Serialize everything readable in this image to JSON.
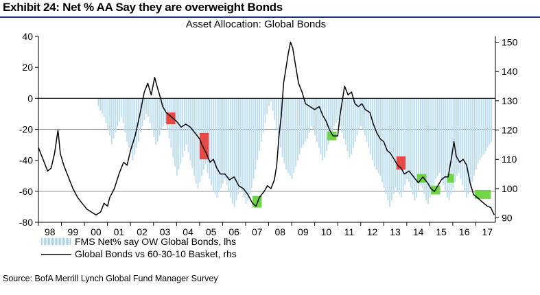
{
  "header": {
    "title": "Exhibit 24: Net % AA Say they are overweight Bonds"
  },
  "source": "Source: BofA Merrill Lynch Global Fund Manager Survey",
  "colors": {
    "bars": "#b9dcf2",
    "line": "#000000",
    "red_highlight": "#e8413c",
    "green_highlight": "#66d43a",
    "title_rule": "#1f2d8a"
  },
  "chart_data": {
    "type": "bar+line",
    "title": "Asset Allocation: Global Bonds",
    "x_tick_labels": [
      "98",
      "99",
      "00",
      "01",
      "02",
      "03",
      "04",
      "05",
      "06",
      "07",
      "08",
      "09",
      "10",
      "11",
      "12",
      "13",
      "14",
      "15",
      "16",
      "17"
    ],
    "x_range": [
      1998.0,
      2017.85
    ],
    "left_axis": {
      "min": -80,
      "max": 40,
      "ticks": [
        40,
        20,
        0,
        -20,
        -40,
        -60,
        -80
      ]
    },
    "right_axis": {
      "min": 88.5,
      "max": 152,
      "ticks": [
        150,
        140,
        130,
        120,
        110,
        100,
        90
      ]
    },
    "reference_lines_lhs": [
      -20,
      -60
    ],
    "series": [
      {
        "name": "FMS Net% say OW Global Bonds, lhs",
        "type": "bar",
        "axis": "left",
        "start": 2000.6,
        "step": 0.0833,
        "values": [
          -5,
          -8,
          -10,
          -12,
          -16,
          -20,
          -24,
          -30,
          -26,
          -22,
          -18,
          -15,
          -12,
          -16,
          -22,
          -28,
          -32,
          -35,
          -40,
          -36,
          -32,
          -28,
          -22,
          -18,
          -14,
          -10,
          -12,
          -16,
          -20,
          -25,
          -30,
          -28,
          -24,
          -20,
          -18,
          -16,
          -20,
          -26,
          -32,
          -38,
          -44,
          -50,
          -46,
          -42,
          -38,
          -34,
          -30,
          -35,
          -40,
          -45,
          -50,
          -55,
          -58,
          -54,
          -50,
          -46,
          -42,
          -48,
          -52,
          -56,
          -60,
          -62,
          -64,
          -60,
          -58,
          -55,
          -52,
          -56,
          -60,
          -64,
          -68,
          -70,
          -66,
          -62,
          -58,
          -60,
          -64,
          -68,
          -66,
          -62,
          -58,
          -52,
          -46,
          -40,
          -34,
          -28,
          -22,
          -16,
          -10,
          -5,
          -2,
          -8,
          -14,
          -20,
          -26,
          -32,
          -38,
          -42,
          -46,
          -48,
          -50,
          -52,
          -48,
          -44,
          -40,
          -36,
          -32,
          -30,
          -28,
          -26,
          -22,
          -18,
          -20,
          -24,
          -28,
          -32,
          -36,
          -40,
          -38,
          -34,
          -30,
          -26,
          -22,
          -18,
          -16,
          -14,
          -18,
          -22,
          -26,
          -30,
          -34,
          -38,
          -36,
          -32,
          -28,
          -24,
          -20,
          -18,
          -20,
          -24,
          -28,
          -32,
          -36,
          -40,
          -44,
          -46,
          -48,
          -50,
          -54,
          -58,
          -62,
          -66,
          -70,
          -66,
          -62,
          -58,
          -60,
          -62,
          -64,
          -60,
          -56,
          -52,
          -54,
          -58,
          -62,
          -66,
          -64,
          -60,
          -56,
          -58,
          -62,
          -66,
          -68,
          -64,
          -60,
          -56,
          -52,
          -50,
          -48,
          -52,
          -56,
          -60,
          -64,
          -66,
          -62,
          -58,
          -54,
          -50,
          -48,
          -52,
          -56,
          -60,
          -64,
          -62,
          -58,
          -54,
          -50,
          -46,
          -42,
          -40,
          -38,
          -36,
          -34,
          -32,
          -30,
          -28
        ]
      },
      {
        "name": "Global Bonds vs 60-30-10 Basket, rhs",
        "type": "line",
        "axis": "right",
        "points": [
          [
            1998.0,
            114
          ],
          [
            1998.2,
            110
          ],
          [
            1998.4,
            106
          ],
          [
            1998.55,
            107
          ],
          [
            1998.7,
            112
          ],
          [
            1998.85,
            120
          ],
          [
            1998.95,
            112
          ],
          [
            1999.1,
            108
          ],
          [
            1999.3,
            104
          ],
          [
            1999.5,
            100
          ],
          [
            1999.7,
            97
          ],
          [
            1999.9,
            95
          ],
          [
            2000.1,
            93
          ],
          [
            2000.3,
            92
          ],
          [
            2000.5,
            91
          ],
          [
            2000.7,
            92
          ],
          [
            2000.85,
            95
          ],
          [
            2001.0,
            94
          ],
          [
            2001.1,
            97
          ],
          [
            2001.3,
            100
          ],
          [
            2001.5,
            105
          ],
          [
            2001.7,
            109
          ],
          [
            2001.85,
            108
          ],
          [
            2002.0,
            113
          ],
          [
            2002.2,
            118
          ],
          [
            2002.4,
            125
          ],
          [
            2002.6,
            133
          ],
          [
            2002.75,
            136
          ],
          [
            2002.9,
            132
          ],
          [
            2003.05,
            138
          ],
          [
            2003.15,
            135
          ],
          [
            2003.3,
            131
          ],
          [
            2003.4,
            128
          ],
          [
            2003.55,
            126
          ],
          [
            2003.7,
            125
          ],
          [
            2003.85,
            124
          ],
          [
            2004.0,
            123
          ],
          [
            2004.2,
            121
          ],
          [
            2004.4,
            122
          ],
          [
            2004.6,
            121
          ],
          [
            2004.8,
            119
          ],
          [
            2005.0,
            117
          ],
          [
            2005.1,
            115
          ],
          [
            2005.3,
            112
          ],
          [
            2005.45,
            109
          ],
          [
            2005.6,
            110
          ],
          [
            2005.75,
            107
          ],
          [
            2005.9,
            105
          ],
          [
            2006.1,
            105
          ],
          [
            2006.3,
            103
          ],
          [
            2006.5,
            104
          ],
          [
            2006.7,
            101
          ],
          [
            2006.9,
            100
          ],
          [
            2007.1,
            98
          ],
          [
            2007.3,
            95
          ],
          [
            2007.45,
            94
          ],
          [
            2007.6,
            97
          ],
          [
            2007.8,
            99
          ],
          [
            2007.95,
            101
          ],
          [
            2008.1,
            100
          ],
          [
            2008.25,
            103
          ],
          [
            2008.35,
            108
          ],
          [
            2008.45,
            118
          ],
          [
            2008.55,
            125
          ],
          [
            2008.65,
            136
          ],
          [
            2008.75,
            141
          ],
          [
            2008.85,
            146
          ],
          [
            2008.95,
            150
          ],
          [
            2009.05,
            148
          ],
          [
            2009.15,
            143
          ],
          [
            2009.3,
            136
          ],
          [
            2009.45,
            133
          ],
          [
            2009.6,
            129
          ],
          [
            2009.8,
            128
          ],
          [
            2010.0,
            127
          ],
          [
            2010.2,
            128
          ],
          [
            2010.35,
            125
          ],
          [
            2010.5,
            123
          ],
          [
            2010.65,
            120
          ],
          [
            2010.8,
            118
          ],
          [
            2011.0,
            118
          ],
          [
            2011.1,
            125
          ],
          [
            2011.2,
            130
          ],
          [
            2011.3,
            135
          ],
          [
            2011.45,
            132
          ],
          [
            2011.6,
            133
          ],
          [
            2011.75,
            129
          ],
          [
            2011.9,
            128
          ],
          [
            2012.05,
            129
          ],
          [
            2012.2,
            127
          ],
          [
            2012.4,
            126
          ],
          [
            2012.55,
            122
          ],
          [
            2012.7,
            119
          ],
          [
            2012.85,
            117
          ],
          [
            2013.0,
            116
          ],
          [
            2013.15,
            113
          ],
          [
            2013.3,
            112
          ],
          [
            2013.45,
            110
          ],
          [
            2013.6,
            108
          ],
          [
            2013.75,
            107
          ],
          [
            2013.9,
            105
          ],
          [
            2014.1,
            106
          ],
          [
            2014.3,
            104
          ],
          [
            2014.5,
            102
          ],
          [
            2014.7,
            104
          ],
          [
            2014.9,
            102
          ],
          [
            2015.05,
            100
          ],
          [
            2015.2,
            99
          ],
          [
            2015.35,
            101
          ],
          [
            2015.5,
            103
          ],
          [
            2015.65,
            104
          ],
          [
            2015.8,
            104
          ],
          [
            2015.95,
            111
          ],
          [
            2016.05,
            116
          ],
          [
            2016.15,
            111
          ],
          [
            2016.3,
            109
          ],
          [
            2016.45,
            110
          ],
          [
            2016.6,
            108
          ],
          [
            2016.75,
            102
          ],
          [
            2016.9,
            98
          ],
          [
            2017.05,
            97
          ],
          [
            2017.2,
            96
          ],
          [
            2017.35,
            95
          ],
          [
            2017.5,
            94
          ],
          [
            2017.65,
            93.5
          ],
          [
            2017.8,
            91
          ]
        ]
      }
    ],
    "highlights": [
      {
        "color": "red",
        "x_start": 2003.55,
        "x_end": 2003.95,
        "y_top": 126,
        "y_bottom": 122
      },
      {
        "color": "red",
        "x_start": 2005.0,
        "x_end": 2005.4,
        "y_top": 119,
        "y_bottom": 110
      },
      {
        "color": "green",
        "x_start": 2007.3,
        "x_end": 2007.7,
        "y_top": 97.5,
        "y_bottom": 93.5
      },
      {
        "color": "green",
        "x_start": 2010.55,
        "x_end": 2010.95,
        "y_top": 119.5,
        "y_bottom": 116.5
      },
      {
        "color": "red",
        "x_start": 2013.55,
        "x_end": 2013.95,
        "y_top": 111,
        "y_bottom": 106.5
      },
      {
        "color": "green",
        "x_start": 2014.45,
        "x_end": 2014.85,
        "y_top": 105,
        "y_bottom": 102
      },
      {
        "color": "green",
        "x_start": 2015.05,
        "x_end": 2015.45,
        "y_top": 101,
        "y_bottom": 98
      },
      {
        "color": "green",
        "x_start": 2015.75,
        "x_end": 2016.05,
        "y_top": 105,
        "y_bottom": 102
      },
      {
        "color": "green",
        "x_start": 2016.95,
        "x_end": 2017.65,
        "y_top": 99.5,
        "y_bottom": 96.5
      }
    ],
    "legend": {
      "placement": "bottom-left",
      "entries": [
        {
          "label": "FMS Net% say OW Global Bonds, lhs",
          "style": "bar"
        },
        {
          "label": "Global Bonds vs 60-30-10 Basket, rhs",
          "style": "line"
        }
      ]
    }
  }
}
